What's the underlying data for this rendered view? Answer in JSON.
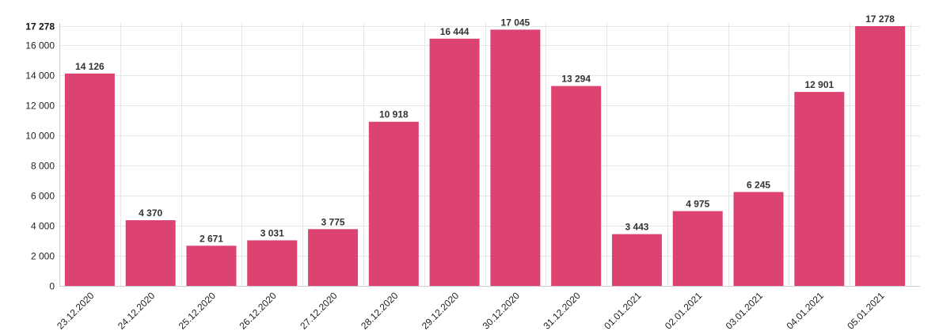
{
  "chart_data": {
    "type": "bar",
    "categories": [
      "23.12.2020",
      "24.12.2020",
      "25.12.2020",
      "26.12.2020",
      "27.12.2020",
      "28.12.2020",
      "29.12.2020",
      "30.12.2020",
      "31.12.2020",
      "01.01.2021",
      "02.01.2021",
      "03.01.2021",
      "04.01.2021",
      "05.01.2021"
    ],
    "values": [
      14126,
      4370,
      2671,
      3031,
      3775,
      10918,
      16444,
      17045,
      13294,
      3443,
      4975,
      6245,
      12901,
      17278
    ],
    "value_labels": [
      "14 126",
      "4 370",
      "2 671",
      "3 031",
      "3 775",
      "10 918",
      "16 444",
      "17 045",
      "13 294",
      "3 443",
      "4 975",
      "6 245",
      "12 901",
      "17 278"
    ],
    "yticks": [
      0,
      2000,
      4000,
      6000,
      8000,
      10000,
      12000,
      14000,
      16000
    ],
    "ytick_labels": [
      "0",
      "2 000",
      "4 000",
      "6 000",
      "8 000",
      "10 000",
      "12 000",
      "14 000",
      "16 000"
    ],
    "ymax": 17278,
    "ymax_label": "17 278",
    "ylim": [
      0,
      17278
    ],
    "title": "",
    "xlabel": "",
    "ylabel": "",
    "bar_color": "#dc4370",
    "grid": true,
    "legend": "none"
  }
}
